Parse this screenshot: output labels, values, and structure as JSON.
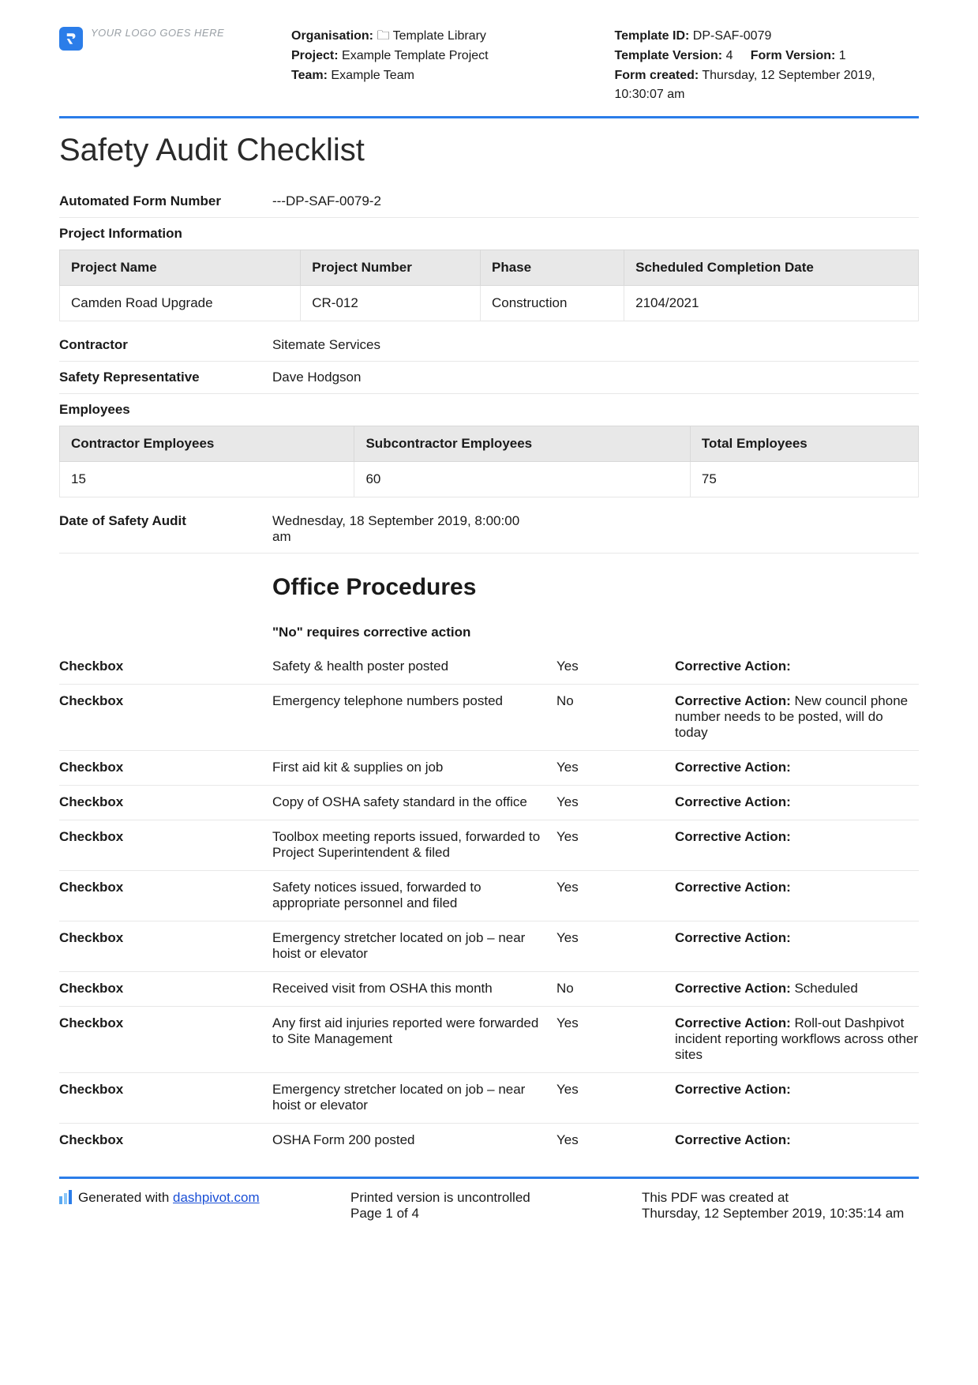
{
  "logo_placeholder": "YOUR LOGO GOES HERE",
  "header": {
    "mid": {
      "org_label": "Organisation:",
      "org_value": "Template Library",
      "project_label": "Project:",
      "project_value": "Example Template Project",
      "team_label": "Team:",
      "team_value": "Example Team"
    },
    "right": {
      "tid_label": "Template ID:",
      "tid_value": "DP-SAF-0079",
      "tver_label": "Template Version:",
      "tver_value": "4",
      "fver_label": "Form Version:",
      "fver_value": "1",
      "created_label": "Form created:",
      "created_value": "Thursday, 12 September 2019, 10:30:07 am"
    }
  },
  "title": "Safety Audit Checklist",
  "afn": {
    "label": "Automated Form Number",
    "value": "---DP-SAF-0079-2"
  },
  "proj_info_label": "Project Information",
  "project_table": {
    "headers": [
      "Project Name",
      "Project Number",
      "Phase",
      "Scheduled Completion Date"
    ],
    "row": [
      "Camden Road Upgrade",
      "CR-012",
      "Construction",
      "2104/2021"
    ]
  },
  "contractor": {
    "label": "Contractor",
    "value": "Sitemate Services"
  },
  "safety_rep": {
    "label": "Safety Representative",
    "value": "Dave Hodgson"
  },
  "employees_label": "Employees",
  "employees_table": {
    "headers": [
      "Contractor Employees",
      "Subcontractor Employees",
      "Total Employees"
    ],
    "row": [
      "15",
      "60",
      "75"
    ]
  },
  "audit_date": {
    "label": "Date of Safety Audit",
    "value": "Wednesday, 18 September 2019, 8:00:00 am"
  },
  "section_title": "Office Procedures",
  "section_note": "\"No\" requires corrective action",
  "checkbox_label": "Checkbox",
  "ca_label": "Corrective Action:",
  "items": [
    {
      "desc": "Safety & health poster posted",
      "ans": "Yes",
      "action": ""
    },
    {
      "desc": "Emergency telephone numbers posted",
      "ans": "No",
      "action": "New council phone number needs to be posted, will do today"
    },
    {
      "desc": "First aid kit & supplies on job",
      "ans": "Yes",
      "action": ""
    },
    {
      "desc": "Copy of OSHA safety standard in the office",
      "ans": "Yes",
      "action": ""
    },
    {
      "desc": "Toolbox meeting reports issued, forwarded to Project Superintendent & filed",
      "ans": "Yes",
      "action": ""
    },
    {
      "desc": "Safety notices issued, forwarded to appropriate personnel and filed",
      "ans": "Yes",
      "action": ""
    },
    {
      "desc": "Emergency stretcher located on job – near hoist or elevator",
      "ans": "Yes",
      "action": ""
    },
    {
      "desc": "Received visit from OSHA this month",
      "ans": "No",
      "action": "Scheduled"
    },
    {
      "desc": "Any first aid injuries reported were forwarded to Site Management",
      "ans": "Yes",
      "action": "Roll-out Dashpivot incident reporting workflows across other sites"
    },
    {
      "desc": "Emergency stretcher located on job – near hoist or elevator",
      "ans": "Yes",
      "action": ""
    },
    {
      "desc": "OSHA Form 200 posted",
      "ans": "Yes",
      "action": ""
    }
  ],
  "footer": {
    "gen_text": "Generated with ",
    "gen_link": "dashpivot.com",
    "mid_line1": "Printed version is uncontrolled",
    "mid_line2": "Page 1 of 4",
    "right_line1": "This PDF was created at",
    "right_line2": "Thursday, 12 September 2019, 10:35:14 am"
  }
}
